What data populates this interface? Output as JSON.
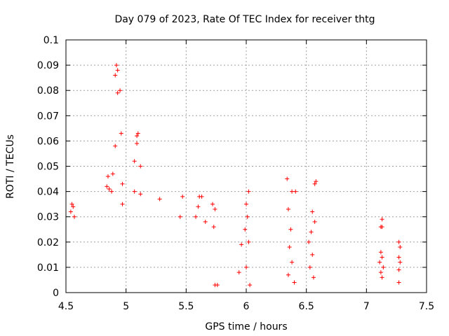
{
  "chart_data": {
    "type": "scatter",
    "title": "Day 079 of 2023, Rate Of TEC Index for receiver thtg",
    "xlabel": "GPS time / hours",
    "ylabel": "ROTI / TECUs",
    "xlim": [
      4.5,
      7.5
    ],
    "ylim": [
      0,
      0.1
    ],
    "x_ticks": [
      "4.5",
      "5",
      "5.5",
      "6",
      "6.5",
      "7",
      "7.5"
    ],
    "y_ticks": [
      "0",
      "0.01",
      "0.02",
      "0.03",
      "0.04",
      "0.05",
      "0.06",
      "0.07",
      "0.08",
      "0.09",
      "0.1"
    ],
    "grid": true,
    "marker": "+",
    "marker_color": "#ff0000",
    "series": [
      {
        "name": "ROTI",
        "points": [
          [
            4.92,
            0.09
          ],
          [
            4.93,
            0.088
          ],
          [
            4.91,
            0.086
          ],
          [
            4.95,
            0.08
          ],
          [
            4.93,
            0.079
          ],
          [
            4.96,
            0.063
          ],
          [
            5.1,
            0.063
          ],
          [
            5.09,
            0.062
          ],
          [
            4.91,
            0.058
          ],
          [
            5.09,
            0.059
          ],
          [
            5.07,
            0.052
          ],
          [
            5.12,
            0.05
          ],
          [
            4.89,
            0.047
          ],
          [
            4.85,
            0.046
          ],
          [
            4.97,
            0.043
          ],
          [
            4.84,
            0.042
          ],
          [
            4.86,
            0.041
          ],
          [
            5.07,
            0.04
          ],
          [
            5.12,
            0.039
          ],
          [
            4.88,
            0.04
          ],
          [
            4.97,
            0.035
          ],
          [
            5.28,
            0.037
          ],
          [
            5.47,
            0.038
          ],
          [
            5.63,
            0.038
          ],
          [
            5.61,
            0.038
          ],
          [
            6.02,
            0.04
          ],
          [
            6.34,
            0.045
          ],
          [
            6.38,
            0.04
          ],
          [
            6.41,
            0.04
          ],
          [
            6.58,
            0.044
          ],
          [
            6.57,
            0.043
          ],
          [
            4.55,
            0.035
          ],
          [
            4.56,
            0.034
          ],
          [
            4.54,
            0.032
          ],
          [
            4.57,
            0.03
          ],
          [
            7.13,
            0.029
          ],
          [
            7.12,
            0.026
          ],
          [
            7.13,
            0.026
          ],
          [
            7.27,
            0.02
          ],
          [
            7.28,
            0.018
          ],
          [
            7.27,
            0.014
          ],
          [
            7.28,
            0.012
          ],
          [
            7.27,
            0.009
          ],
          [
            7.27,
            0.004
          ],
          [
            7.12,
            0.016
          ],
          [
            7.13,
            0.014
          ],
          [
            7.11,
            0.012
          ],
          [
            7.14,
            0.01
          ],
          [
            7.12,
            0.008
          ],
          [
            7.13,
            0.006
          ],
          [
            5.74,
            0.003
          ],
          [
            5.76,
            0.003
          ],
          [
            6.03,
            0.003
          ],
          [
            5.94,
            0.008
          ],
          [
            6.0,
            0.01
          ],
          [
            6.02,
            0.02
          ],
          [
            5.99,
            0.025
          ],
          [
            6.01,
            0.03
          ],
          [
            6.0,
            0.035
          ],
          [
            5.96,
            0.019
          ],
          [
            6.35,
            0.033
          ],
          [
            6.37,
            0.025
          ],
          [
            6.36,
            0.018
          ],
          [
            6.38,
            0.012
          ],
          [
            6.35,
            0.007
          ],
          [
            6.4,
            0.004
          ],
          [
            6.52,
            0.02
          ],
          [
            6.55,
            0.015
          ],
          [
            6.53,
            0.01
          ],
          [
            6.56,
            0.006
          ],
          [
            6.57,
            0.028
          ],
          [
            6.55,
            0.032
          ],
          [
            6.54,
            0.024
          ],
          [
            5.72,
            0.035
          ],
          [
            5.74,
            0.033
          ],
          [
            5.73,
            0.026
          ],
          [
            5.58,
            0.03
          ],
          [
            5.6,
            0.034
          ],
          [
            5.66,
            0.028
          ],
          [
            5.45,
            0.03
          ]
        ]
      }
    ]
  }
}
